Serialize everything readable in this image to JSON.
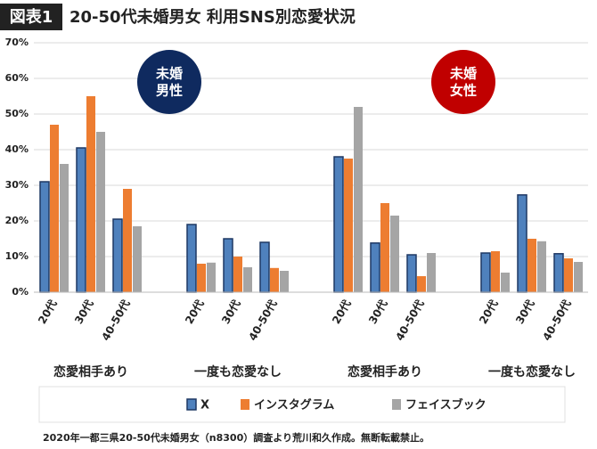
{
  "chart_data": {
    "type": "bar",
    "badge": "図表1",
    "title": "20-50代未婚男女 利用SNS別恋愛状況",
    "categories": [
      "20代",
      "30代",
      "40-50代",
      "20代",
      "30代",
      "40-50代",
      "20代",
      "30代",
      "40-50代",
      "20代",
      "30代",
      "40-50代"
    ],
    "group_labels": [
      "恋愛相手あり",
      "一度も恋愛なし",
      "恋愛相手あり",
      "一度も恋愛なし"
    ],
    "panels": [
      {
        "lines": [
          "未婚",
          "男性"
        ],
        "color": "#0f2a5f"
      },
      {
        "lines": [
          "未婚",
          "女性"
        ],
        "color": "#c00000"
      }
    ],
    "series": [
      {
        "name": "X",
        "color": "#4f81bd",
        "values": [
          31,
          40.5,
          20.5,
          19,
          15,
          14,
          38,
          13.8,
          10.5,
          11,
          27.3,
          10.8
        ]
      },
      {
        "name": "インスタグラム",
        "color": "#ed7d31",
        "values": [
          47,
          55,
          29,
          8,
          10,
          6.8,
          37.5,
          25,
          4.5,
          11.5,
          15,
          9.5
        ]
      },
      {
        "name": "フェイスブック",
        "color": "#a5a5a5",
        "values": [
          36,
          45,
          18.5,
          8.3,
          7,
          6,
          52,
          21.5,
          11,
          5.5,
          14.3,
          8.5
        ]
      }
    ],
    "ylim": [
      0,
      70
    ],
    "yticks": [
      {
        "value": 0,
        "label": "0%"
      },
      {
        "value": 10,
        "label": "10%"
      },
      {
        "value": 20,
        "label": "20%"
      },
      {
        "value": 30,
        "label": "30%"
      },
      {
        "value": 40,
        "label": "40%"
      },
      {
        "value": 50,
        "label": "50%"
      },
      {
        "value": 60,
        "label": "60%"
      },
      {
        "value": 70,
        "label": "70%"
      }
    ],
    "grid": true,
    "footnote": "2020年一都三県20-50代未婚男女（n8300）調査より荒川和久作成。無断転載禁止。"
  }
}
